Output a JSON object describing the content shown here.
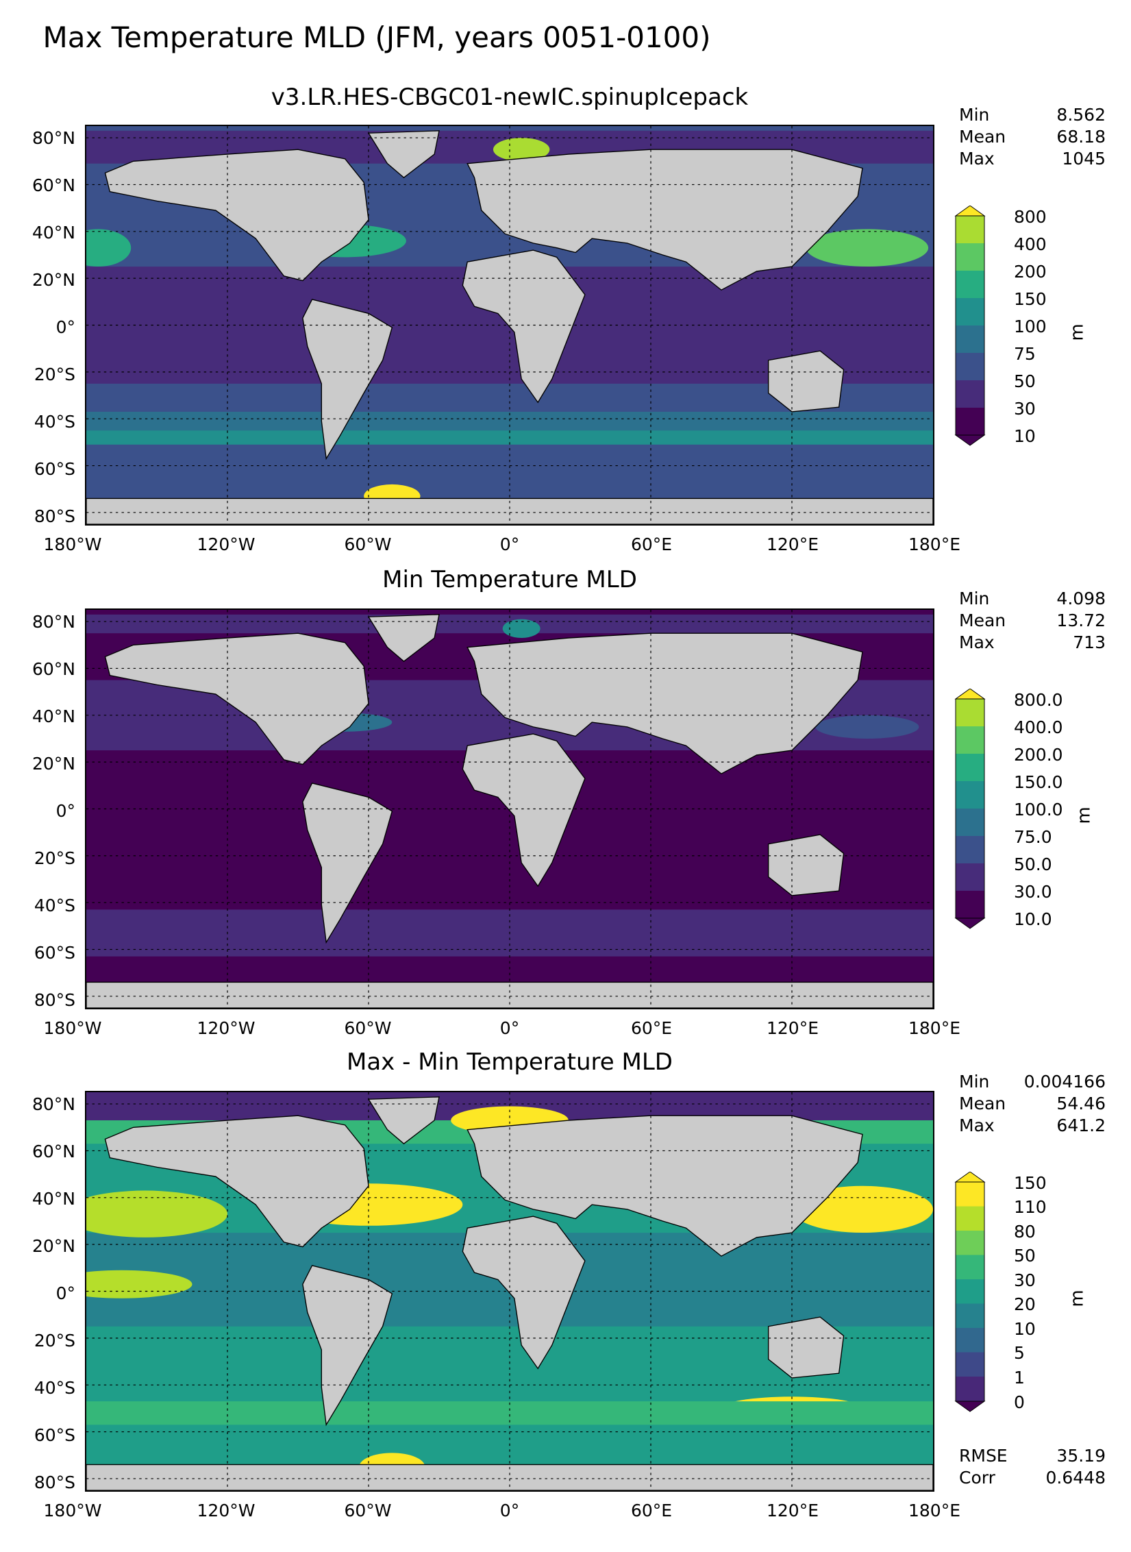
{
  "suptitle": "Max Temperature MLD (JFM, years 0051-0100)",
  "panels": [
    {
      "title": "v3.LR.HES-CBGC01-newIC.spinupIcepack",
      "stats": [
        {
          "label": "Min",
          "value": "8.562"
        },
        {
          "label": "Mean",
          "value": "68.18"
        },
        {
          "label": "Max",
          "value": "1045"
        }
      ],
      "colorbar": {
        "ticks": [
          "800",
          "400",
          "200",
          "150",
          "100",
          "75",
          "50",
          "30",
          "10"
        ],
        "label": "m"
      }
    },
    {
      "title": "Min Temperature MLD",
      "stats": [
        {
          "label": "Min",
          "value": "4.098"
        },
        {
          "label": "Mean",
          "value": "13.72"
        },
        {
          "label": "Max",
          "value": "713"
        }
      ],
      "colorbar": {
        "ticks": [
          "800.0",
          "400.0",
          "200.0",
          "150.0",
          "100.0",
          "75.0",
          "50.0",
          "30.0",
          "10.0"
        ],
        "label": "m"
      }
    },
    {
      "title": "Max - Min Temperature MLD",
      "stats": [
        {
          "label": "Min",
          "value": "0.004166"
        },
        {
          "label": "Mean",
          "value": "54.46"
        },
        {
          "label": "Max",
          "value": "641.2"
        }
      ],
      "colorbar": {
        "ticks": [
          "150",
          "110",
          "80",
          "50",
          "30",
          "20",
          "10",
          "5",
          "1",
          "0"
        ],
        "label": "m"
      },
      "extra_stats": [
        {
          "label": "RMSE",
          "value": "35.19"
        },
        {
          "label": "Corr",
          "value": "0.6448"
        }
      ]
    }
  ],
  "lat_labels": [
    "80°N",
    "60°N",
    "40°N",
    "20°N",
    "0°",
    "20°S",
    "40°S",
    "60°S",
    "80°S"
  ],
  "lon_labels": [
    "180°W",
    "120°W",
    "60°W",
    "0°",
    "60°E",
    "120°E",
    "180°E"
  ],
  "colors": {
    "land": "#cbcbcb",
    "viridis9": [
      "#440154",
      "#472c7a",
      "#3b518b",
      "#2c718e",
      "#21908d",
      "#27ad81",
      "#5cc863",
      "#aadc32",
      "#fde725"
    ],
    "viridis10": [
      "#440154",
      "#482878",
      "#3e4989",
      "#31688e",
      "#26828e",
      "#1f9e89",
      "#35b779",
      "#6ece58",
      "#b5de2b",
      "#fde725"
    ]
  }
}
